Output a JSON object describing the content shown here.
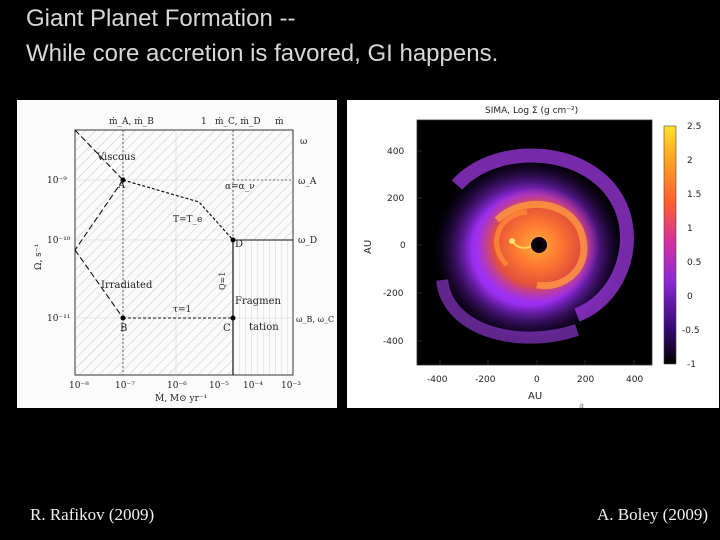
{
  "slide": {
    "title_line1": "Giant Planet Formation --",
    "title_line2": "While core accretion is favored, GI happens.",
    "credit_left": "R. Rafikov (2009)",
    "credit_right": "A. Boley (2009)"
  },
  "left_figure": {
    "top_axis_labels": [
      "ṁ_A, ṁ_B",
      "1",
      "ṁ_C, ṁ_D",
      "ṁ"
    ],
    "right_axis_labels": [
      "ω",
      "ω_A",
      "ω_D",
      "ω_B, ω_C"
    ],
    "y_axis_label": "Ω, s⁻¹",
    "y_tick_labels": [
      "10⁻⁹",
      "10⁻¹⁰",
      "10⁻¹¹"
    ],
    "x_tick_labels": [
      "10⁻⁸",
      "10⁻⁷",
      "10⁻⁶",
      "10⁻⁵",
      "10⁻⁴",
      "10⁻³"
    ],
    "x_axis_label": "Ṁ, M⊙ yr⁻¹",
    "region_labels": [
      "Viscous",
      "Irradiated",
      "Fragmen",
      "tation"
    ],
    "curve_labels": [
      "α=α_ν",
      "T=T_e",
      "τ=1",
      "Q=1"
    ],
    "point_labels": [
      "A",
      "B",
      "C",
      "D"
    ]
  },
  "right_figure": {
    "title": "SIMA, Log Σ (g cm⁻²)",
    "y_axis_label": "AU",
    "x_axis_label": "AU",
    "y_tick_labels": [
      "400",
      "200",
      "0",
      "-200",
      "-400"
    ],
    "x_tick_labels": [
      "-400",
      "-200",
      "0",
      "200",
      "400"
    ],
    "colorbar_tick_labels": [
      "2.5",
      "2",
      "1.5",
      "1",
      "0.5",
      "0",
      "-0.5",
      "-1"
    ],
    "colorbar_colors": [
      "#000000",
      "#3a0a7a",
      "#8a2ad8",
      "#d8309a",
      "#ff6030",
      "#ffa020",
      "#ffe030"
    ],
    "footer_mark": "a"
  }
}
